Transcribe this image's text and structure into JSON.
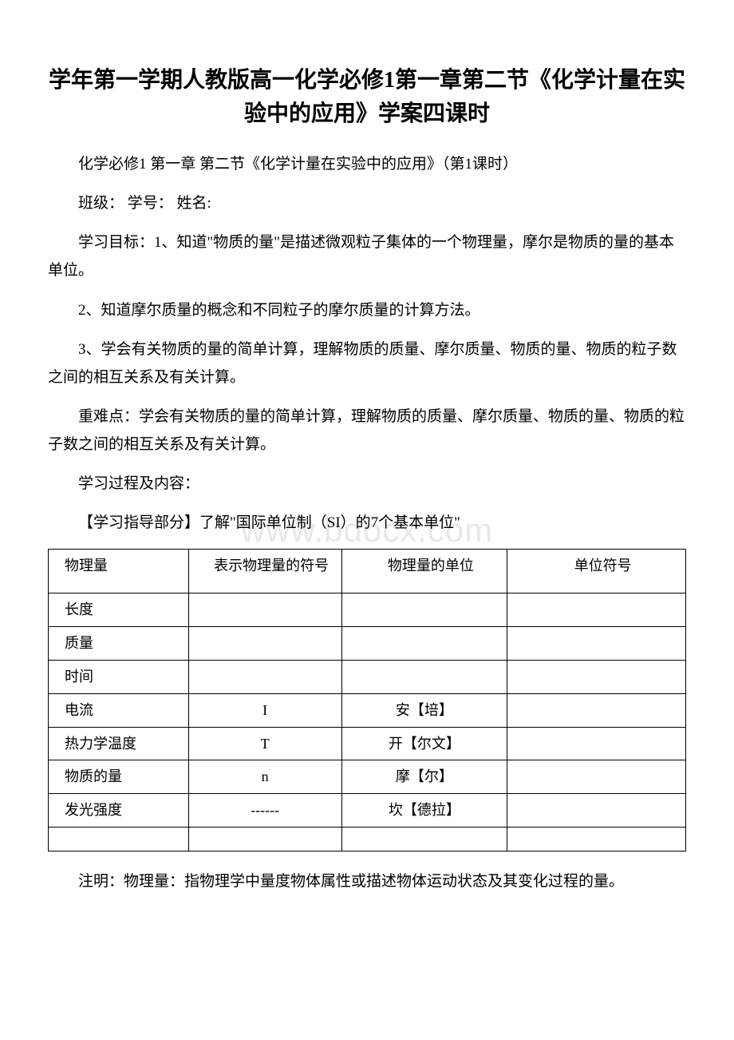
{
  "title": "学年第一学期人教版高一化学必修1第一章第二节《化学计量在实验中的应用》学案四课时",
  "subtitle": "化学必修1 第一章 第二节《化学计量在实验中的应用》（第1课时）",
  "student_info": "班级：   学号：   姓名:",
  "objectives_label": "学习目标：",
  "objective1": "1、知道\"物质的量\"是描述微观粒子集体的一个物理量，摩尔是物质的量的基本单位。",
  "objective2": "2、知道摩尔质量的概念和不同粒子的摩尔质量的计算方法。",
  "objective3": "3、学会有关物质的量的简单计算，理解物质的质量、摩尔质量、物质的量、物质的粒子数之间的相互关系及有关计算。",
  "key_points_label": "重难点：",
  "key_points": "学会有关物质的量的简单计算，理解物质的质量、摩尔质量、物质的量、物质的粒子数之间的相互关系及有关计算。",
  "process_label": "学习过程及内容：",
  "guide_section": "【学习指导部分】了解\"国际单位制（SI）的7个基本单位\"",
  "watermark": "www.bdocx.com",
  "table": {
    "headers": [
      "物理量",
      "表示物理量的符号",
      "物理量的单位",
      "单位符号"
    ],
    "rows": [
      [
        "长度",
        "",
        "",
        ""
      ],
      [
        "质量",
        "",
        "",
        ""
      ],
      [
        "时间",
        "",
        "",
        ""
      ],
      [
        "电流",
        "I",
        "安【培】",
        ""
      ],
      [
        "热力学温度",
        "T",
        "开【尔文】",
        ""
      ],
      [
        "物质的量",
        "n",
        "摩【尔】",
        ""
      ],
      [
        "发光强度",
        "------",
        "坎【德拉】",
        ""
      ]
    ]
  },
  "note_label": "注明：",
  "note": "物理量：指物理学中量度物体属性或描述物体运动状态及其变化过程的量。",
  "colors": {
    "text": "#000000",
    "background": "#ffffff",
    "watermark": "#e8e8e8",
    "border": "#000000"
  },
  "typography": {
    "title_fontsize": 28,
    "body_fontsize": 19,
    "table_fontsize": 18,
    "watermark_fontsize": 42,
    "font_family": "SimSun"
  }
}
